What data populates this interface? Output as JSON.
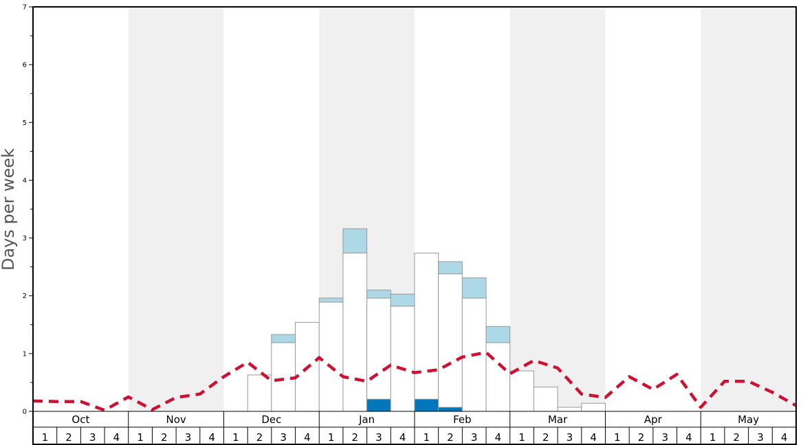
{
  "chart_data": {
    "type": "bar",
    "ylabel": "Days per week",
    "ylim": [
      0,
      7
    ],
    "yticks": [
      "0",
      "1",
      "2",
      "3",
      "4",
      "5",
      "6",
      "7"
    ],
    "months": [
      "Oct",
      "Nov",
      "Dec",
      "Jan",
      "Feb",
      "Mar",
      "Apr",
      "May"
    ],
    "week_labels": [
      "1",
      "2",
      "3",
      "4"
    ],
    "shaded_months": [
      "Nov",
      "Jan",
      "Mar",
      "May"
    ],
    "colors": {
      "total_bar": "#ffffff",
      "light_bar": "#add8e6",
      "dark_bar": "#0077bb",
      "average_line": "#cc1133",
      "shade": "#f0f0f0"
    },
    "series": [
      {
        "values": [
          0,
          0,
          0,
          0,
          0,
          0,
          0,
          0,
          0,
          0.63,
          1.19,
          1.54,
          1.89,
          2.74,
          1.96,
          1.82,
          2.74,
          2.38,
          1.96,
          1.19,
          0.7,
          0.42,
          0.07,
          0.14,
          0,
          0,
          0,
          0,
          0,
          0,
          0,
          0
        ]
      },
      {
        "values": [
          0,
          0,
          0,
          0,
          0,
          0,
          0,
          0,
          0,
          0,
          0.14,
          0,
          0.07,
          0.42,
          0.14,
          0.21,
          0,
          0.21,
          0.35,
          0.28,
          0,
          0,
          0,
          0,
          0,
          0,
          0,
          0,
          0,
          0,
          0,
          0
        ]
      },
      {
        "values": [
          0,
          0,
          0,
          0,
          0,
          0,
          0,
          0,
          0,
          0,
          0,
          0,
          0,
          0,
          0.21,
          0,
          0.21,
          0.07,
          0,
          0,
          0,
          0,
          0,
          0,
          0,
          0,
          0,
          0,
          0,
          0,
          0,
          0
        ]
      },
      {
        "values": [
          0.18,
          0.17,
          0.17,
          0.02,
          0.25,
          0.03,
          0.24,
          0.3,
          0.6,
          0.85,
          0.53,
          0.58,
          0.93,
          0.6,
          0.52,
          0.8,
          0.67,
          0.72,
          0.94,
          1.02,
          0.65,
          0.88,
          0.75,
          0.3,
          0.24,
          0.6,
          0.38,
          0.64,
          0.07,
          0.52,
          0.52,
          0.33,
          0.1
        ]
      }
    ]
  }
}
